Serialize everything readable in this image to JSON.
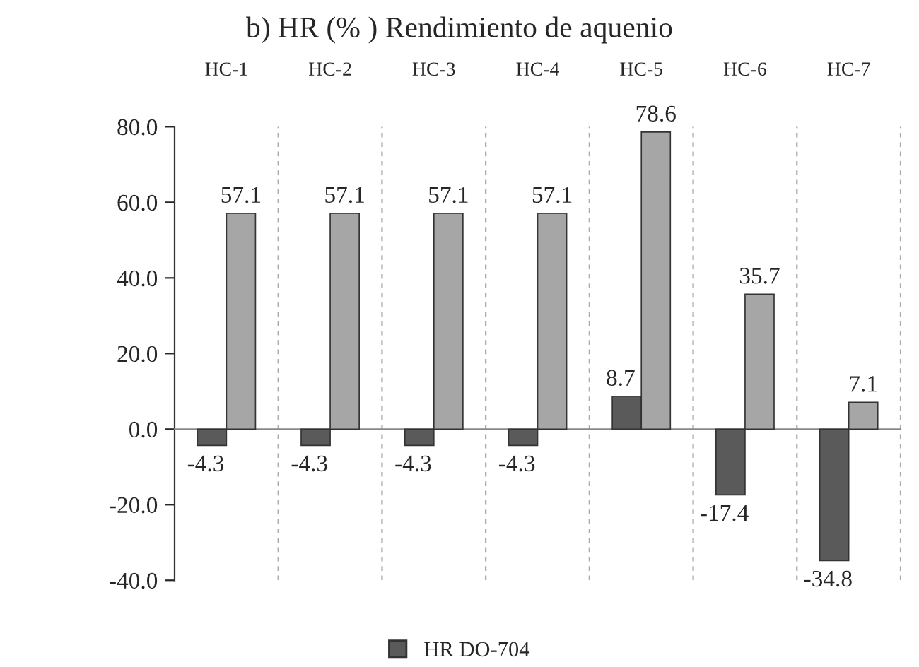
{
  "chart_data": {
    "type": "bar",
    "title": "b) HR (% ) Rendimiento de aquenio",
    "categories": [
      "HC-1",
      "HC-2",
      "HC-3",
      "HC-4",
      "HC-5",
      "HC-6",
      "HC-7"
    ],
    "series": [
      {
        "name": "HR DO-704",
        "color": "#5a5a5a",
        "values": [
          -4.3,
          -4.3,
          -4.3,
          -4.3,
          8.7,
          -17.4,
          -34.8
        ],
        "value_labels": [
          "-4.3",
          "-4.3",
          "-4.3",
          "-4.3",
          "8.7",
          "-17.4",
          "-34.8"
        ]
      },
      {
        "color": "#a6a6a6",
        "values": [
          57.1,
          57.1,
          57.1,
          57.1,
          78.6,
          35.7,
          7.1
        ],
        "value_labels": [
          "57.1",
          "57.1",
          "57.1",
          "57.1",
          "78.6",
          "35.7",
          "7.1"
        ]
      }
    ],
    "ylim": [
      -40,
      80
    ],
    "yticks": [
      {
        "value": -40,
        "label": "-40.0"
      },
      {
        "value": -20,
        "label": "-20.0"
      },
      {
        "value": 0,
        "label": "0.0"
      },
      {
        "value": 20,
        "label": "20.0"
      },
      {
        "value": 40,
        "label": "40.0"
      },
      {
        "value": 60,
        "label": "60.0"
      },
      {
        "value": 80,
        "label": "80.0"
      }
    ],
    "grid": "x",
    "legend": "bottom"
  }
}
